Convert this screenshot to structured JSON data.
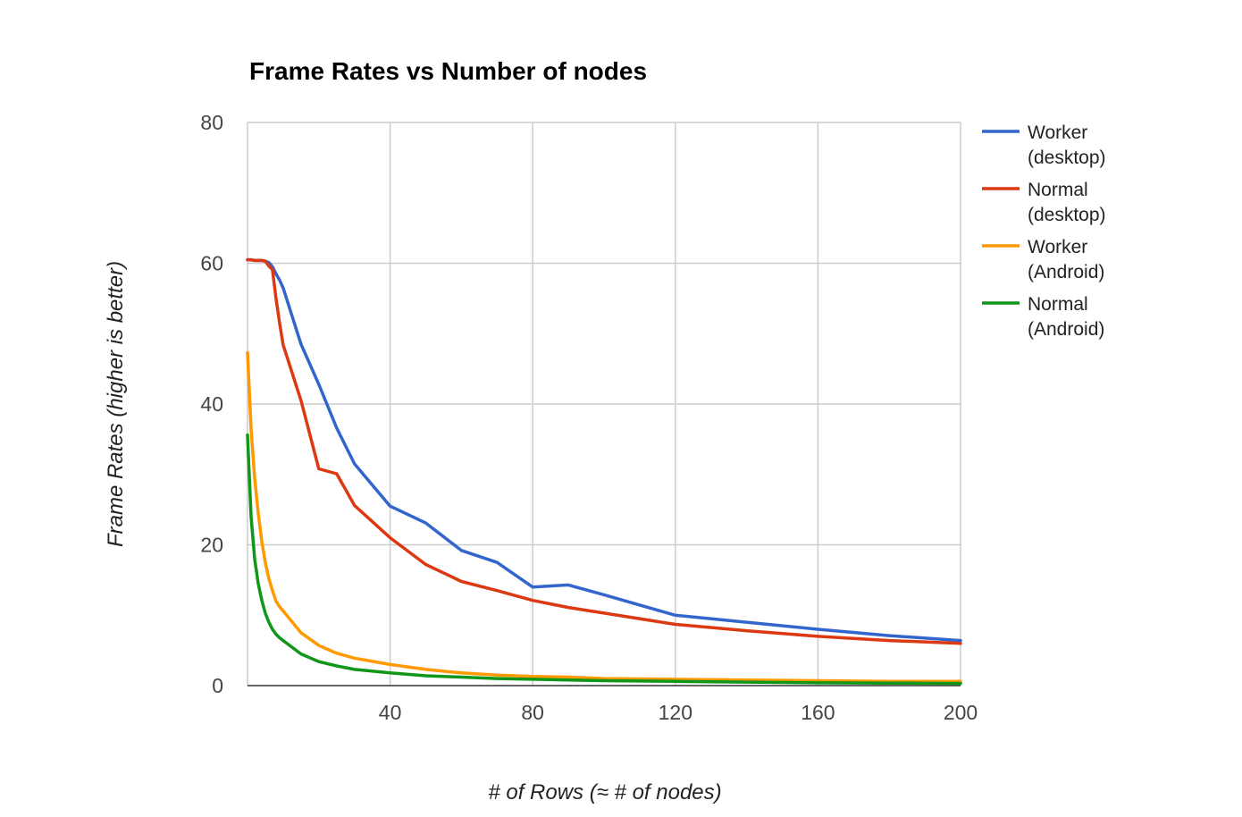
{
  "chart_data": {
    "type": "line",
    "title": "Frame Rates vs Number of nodes",
    "xlabel": "# of Rows (≈ # of nodes)",
    "ylabel": "Frame Rates (higher is better)",
    "xlim": [
      0,
      200
    ],
    "ylim": [
      0,
      80
    ],
    "x_ticks": [
      40,
      80,
      120,
      160,
      200
    ],
    "y_ticks": [
      0,
      20,
      40,
      60,
      80
    ],
    "grid": true,
    "legend_position": "right",
    "series": [
      {
        "name": "Worker (desktop)",
        "name_lines": [
          "Worker",
          "(desktop)"
        ],
        "color": "#3366cc",
        "x": [
          0,
          1,
          2,
          3,
          4,
          5,
          6,
          7,
          8,
          9,
          10,
          15,
          20,
          25,
          30,
          40,
          50,
          60,
          70,
          80,
          90,
          100,
          120,
          140,
          160,
          180,
          200
        ],
        "values": [
          60.5,
          60.5,
          60.4,
          60.4,
          60.4,
          60.3,
          60.1,
          59.5,
          58.5,
          57.6,
          56.5,
          48.5,
          42.8,
          36.6,
          31.5,
          25.5,
          23.1,
          19.2,
          17.5,
          14.0,
          14.3,
          12.9,
          10.0,
          9.0,
          8.0,
          7.1,
          6.4
        ]
      },
      {
        "name": "Normal (desktop)",
        "name_lines": [
          "Normal",
          "(desktop)"
        ],
        "color": "#dc3912",
        "x": [
          0,
          1,
          2,
          3,
          4,
          5,
          6,
          7,
          8,
          9,
          10,
          15,
          20,
          25,
          30,
          40,
          50,
          60,
          70,
          80,
          90,
          100,
          120,
          140,
          160,
          180,
          200
        ],
        "values": [
          60.5,
          60.5,
          60.4,
          60.4,
          60.4,
          60.3,
          59.6,
          59.1,
          55.0,
          51.5,
          48.4,
          40.5,
          30.8,
          30.1,
          25.6,
          21.0,
          17.2,
          14.8,
          13.5,
          12.1,
          11.1,
          10.3,
          8.7,
          7.8,
          7.0,
          6.4,
          6.0
        ]
      },
      {
        "name": "Worker (Android)",
        "name_lines": [
          "Worker",
          "(Android)"
        ],
        "color": "#ff9900",
        "x": [
          0,
          1,
          2,
          3,
          4,
          5,
          6,
          7,
          8,
          9,
          10,
          15,
          20,
          25,
          30,
          40,
          50,
          60,
          70,
          80,
          90,
          100,
          120,
          140,
          160,
          180,
          200
        ],
        "values": [
          47.3,
          36.5,
          29.5,
          24.5,
          20.5,
          17.5,
          15.2,
          13.5,
          12.0,
          11.2,
          10.6,
          7.5,
          5.7,
          4.6,
          3.9,
          3.0,
          2.3,
          1.8,
          1.5,
          1.3,
          1.2,
          1.0,
          0.9,
          0.8,
          0.7,
          0.6,
          0.6
        ]
      },
      {
        "name": "Normal (Android)",
        "name_lines": [
          "Normal",
          "(Android)"
        ],
        "color": "#109618",
        "x": [
          0,
          1,
          2,
          3,
          4,
          5,
          6,
          7,
          8,
          9,
          10,
          15,
          20,
          25,
          30,
          40,
          50,
          60,
          70,
          80,
          90,
          100,
          120,
          140,
          160,
          180,
          200
        ],
        "values": [
          35.6,
          24.0,
          18.0,
          14.5,
          12.1,
          10.3,
          9.0,
          8.0,
          7.3,
          6.8,
          6.4,
          4.5,
          3.4,
          2.8,
          2.3,
          1.8,
          1.4,
          1.2,
          1.0,
          0.9,
          0.8,
          0.7,
          0.6,
          0.5,
          0.4,
          0.35,
          0.3
        ]
      }
    ]
  }
}
